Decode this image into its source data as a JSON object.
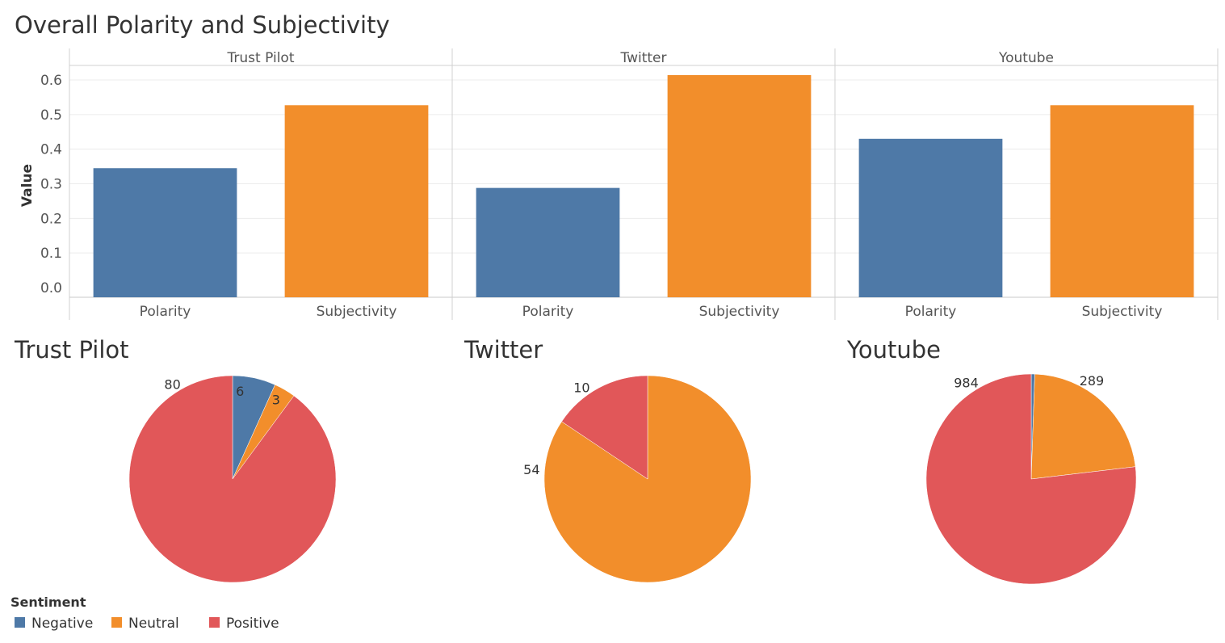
{
  "colors": {
    "polarity": "#4e79a7",
    "subjectivity": "#f28e2b",
    "negative": "#4e79a7",
    "neutral": "#f28e2b",
    "positive": "#e15759"
  },
  "chart_data": [
    {
      "type": "bar",
      "title": "Overall Polarity and Subjectivity",
      "ylabel": "Value",
      "ylim": [
        0,
        0.62
      ],
      "yticks": [
        "0.0",
        "0.1",
        "0.2",
        "0.3",
        "0.4",
        "0.5",
        "0.6"
      ],
      "grid": true,
      "panels": [
        {
          "name": "Trust Pilot",
          "categories": [
            "Polarity",
            "Subjectivity"
          ],
          "values": [
            0.345,
            0.527
          ]
        },
        {
          "name": "Twitter",
          "categories": [
            "Polarity",
            "Subjectivity"
          ],
          "values": [
            0.288,
            0.614
          ]
        },
        {
          "name": "Youtube",
          "categories": [
            "Polarity",
            "Subjectivity"
          ],
          "values": [
            0.43,
            0.527
          ]
        }
      ]
    },
    {
      "type": "pie",
      "title": "Trust Pilot",
      "slices": [
        {
          "label": "Negative",
          "value": 6
        },
        {
          "label": "Neutral",
          "value": 3
        },
        {
          "label": "Positive",
          "value": 80
        }
      ]
    },
    {
      "type": "pie",
      "title": "Twitter",
      "slices": [
        {
          "label": "Neutral",
          "value": 54
        },
        {
          "label": "Positive",
          "value": 10
        }
      ]
    },
    {
      "type": "pie",
      "title": "Youtube",
      "slices": [
        {
          "label": "Negative",
          "value": 7
        },
        {
          "label": "Neutral",
          "value": 289
        },
        {
          "label": "Positive",
          "value": 984
        }
      ]
    }
  ],
  "legend": {
    "title": "Sentiment",
    "items": [
      {
        "label": "Negative",
        "color": "#4e79a7"
      },
      {
        "label": "Neutral",
        "color": "#f28e2b"
      },
      {
        "label": "Positive",
        "color": "#e15759"
      }
    ]
  }
}
